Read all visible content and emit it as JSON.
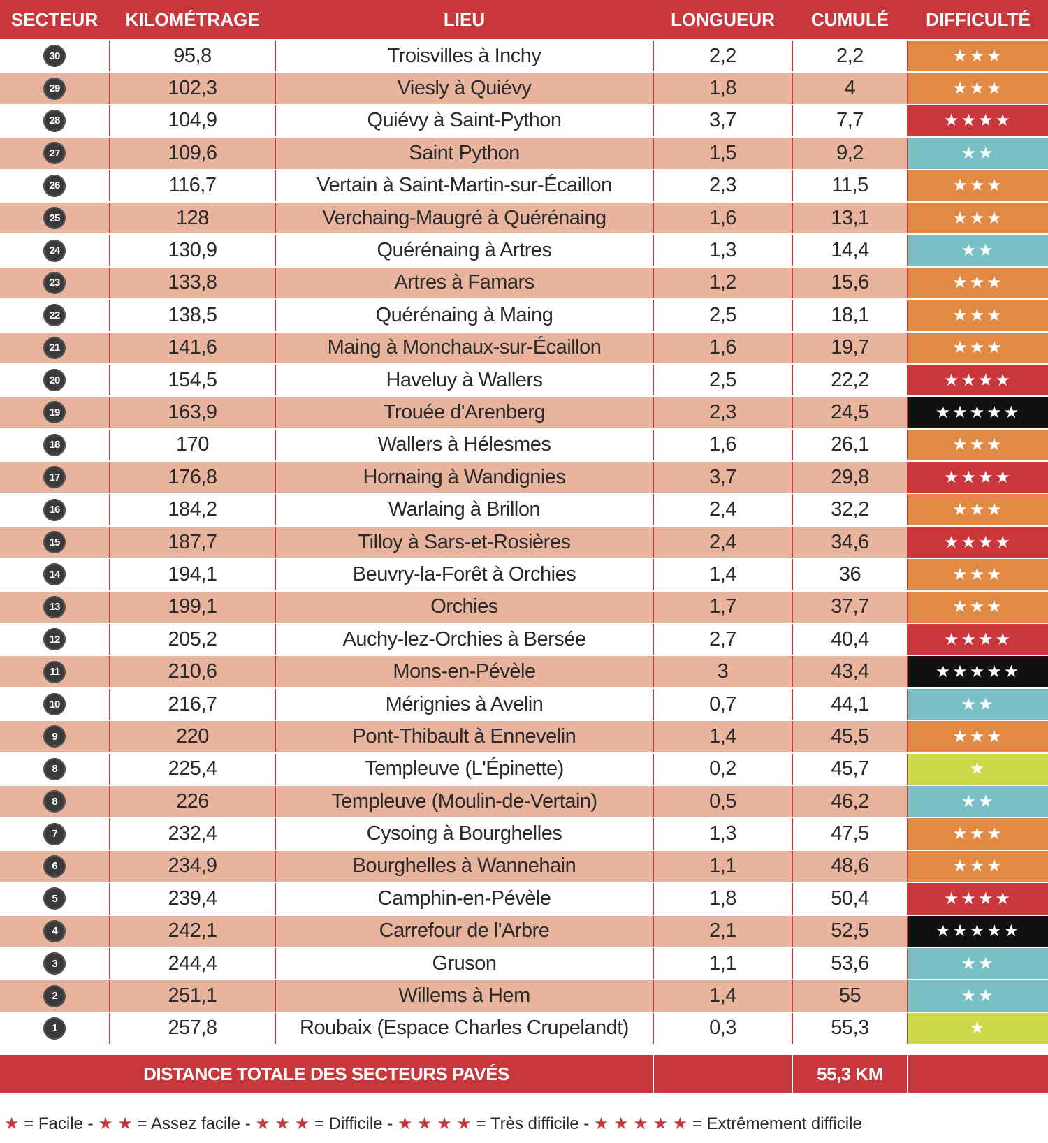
{
  "headers": {
    "sector": "SECTEUR",
    "km": "KILOMÉTRAGE",
    "place": "LIEU",
    "length": "LONGUEUR",
    "cumul": "CUMULÉ",
    "difficulty": "DIFFICULTÉ"
  },
  "difficulty_colors": {
    "1": "#cdd84a",
    "2": "#78bfc6",
    "3": "#e08a45",
    "4": "#c8373b",
    "5": "#111111"
  },
  "rows": [
    {
      "sector": "30",
      "km": "95,8",
      "place": "Troisvilles à Inchy",
      "length": "2,2",
      "cumul": "2,2",
      "stars": 3
    },
    {
      "sector": "29",
      "km": "102,3",
      "place": "Viesly à Quiévy",
      "length": "1,8",
      "cumul": "4",
      "stars": 3
    },
    {
      "sector": "28",
      "km": "104,9",
      "place": "Quiévy à Saint-Python",
      "length": "3,7",
      "cumul": "7,7",
      "stars": 4
    },
    {
      "sector": "27",
      "km": "109,6",
      "place": "Saint Python",
      "length": "1,5",
      "cumul": "9,2",
      "stars": 2
    },
    {
      "sector": "26",
      "km": "116,7",
      "place": "Vertain à Saint-Martin-sur-Écaillon",
      "length": "2,3",
      "cumul": "11,5",
      "stars": 3
    },
    {
      "sector": "25",
      "km": "128",
      "place": "Verchaing-Maugré à Quérénaing",
      "length": "1,6",
      "cumul": "13,1",
      "stars": 3
    },
    {
      "sector": "24",
      "km": "130,9",
      "place": "Quérénaing à Artres",
      "length": "1,3",
      "cumul": "14,4",
      "stars": 2
    },
    {
      "sector": "23",
      "km": "133,8",
      "place": "Artres à Famars",
      "length": "1,2",
      "cumul": "15,6",
      "stars": 3
    },
    {
      "sector": "22",
      "km": "138,5",
      "place": "Quérénaing à Maing",
      "length": "2,5",
      "cumul": "18,1",
      "stars": 3
    },
    {
      "sector": "21",
      "km": "141,6",
      "place": "Maing à Monchaux-sur-Écaillon",
      "length": "1,6",
      "cumul": "19,7",
      "stars": 3
    },
    {
      "sector": "20",
      "km": "154,5",
      "place": "Haveluy à Wallers",
      "length": "2,5",
      "cumul": "22,2",
      "stars": 4
    },
    {
      "sector": "19",
      "km": "163,9",
      "place": "Trouée d'Arenberg",
      "length": "2,3",
      "cumul": "24,5",
      "stars": 5
    },
    {
      "sector": "18",
      "km": "170",
      "place": "Wallers à Hélesmes",
      "length": "1,6",
      "cumul": "26,1",
      "stars": 3
    },
    {
      "sector": "17",
      "km": "176,8",
      "place": "Hornaing à Wandignies",
      "length": "3,7",
      "cumul": "29,8",
      "stars": 4
    },
    {
      "sector": "16",
      "km": "184,2",
      "place": "Warlaing à Brillon",
      "length": "2,4",
      "cumul": "32,2",
      "stars": 3
    },
    {
      "sector": "15",
      "km": "187,7",
      "place": "Tilloy à Sars-et-Rosières",
      "length": "2,4",
      "cumul": "34,6",
      "stars": 4
    },
    {
      "sector": "14",
      "km": "194,1",
      "place": "Beuvry-la-Forêt à Orchies",
      "length": "1,4",
      "cumul": "36",
      "stars": 3
    },
    {
      "sector": "13",
      "km": "199,1",
      "place": "Orchies",
      "length": "1,7",
      "cumul": "37,7",
      "stars": 3
    },
    {
      "sector": "12",
      "km": "205,2",
      "place": "Auchy-lez-Orchies à Bersée",
      "length": "2,7",
      "cumul": "40,4",
      "stars": 4
    },
    {
      "sector": "11",
      "km": "210,6",
      "place": "Mons-en-Pévèle",
      "length": "3",
      "cumul": "43,4",
      "stars": 5
    },
    {
      "sector": "10",
      "km": "216,7",
      "place": "Mérignies à Avelin",
      "length": "0,7",
      "cumul": "44,1",
      "stars": 2
    },
    {
      "sector": "9",
      "km": "220",
      "place": "Pont-Thibault à Ennevelin",
      "length": "1,4",
      "cumul": "45,5",
      "stars": 3
    },
    {
      "sector": "8",
      "km": "225,4",
      "place": "Templeuve (L'Épinette)",
      "length": "0,2",
      "cumul": "45,7",
      "stars": 1
    },
    {
      "sector": "8",
      "km": "226",
      "place": "Templeuve (Moulin-de-Vertain)",
      "length": "0,5",
      "cumul": "46,2",
      "stars": 2
    },
    {
      "sector": "7",
      "km": "232,4",
      "place": "Cysoing à Bourghelles",
      "length": "1,3",
      "cumul": "47,5",
      "stars": 3
    },
    {
      "sector": "6",
      "km": "234,9",
      "place": "Bourghelles à Wannehain",
      "length": "1,1",
      "cumul": "48,6",
      "stars": 3
    },
    {
      "sector": "5",
      "km": "239,4",
      "place": "Camphin-en-Pévèle",
      "length": "1,8",
      "cumul": "50,4",
      "stars": 4
    },
    {
      "sector": "4",
      "km": "242,1",
      "place": "Carrefour de l'Arbre",
      "length": "2,1",
      "cumul": "52,5",
      "stars": 5
    },
    {
      "sector": "3",
      "km": "244,4",
      "place": "Gruson",
      "length": "1,1",
      "cumul": "53,6",
      "stars": 2
    },
    {
      "sector": "2",
      "km": "251,1",
      "place": "Willems à Hem",
      "length": "1,4",
      "cumul": "55",
      "stars": 2
    },
    {
      "sector": "1",
      "km": "257,8",
      "place": "Roubaix (Espace Charles Crupelandt)",
      "length": "0,3",
      "cumul": "55,3",
      "stars": 1
    }
  ],
  "total": {
    "label": "DISTANCE TOTALE DES SECTEURS PAVÉS",
    "value": "55,3 KM"
  },
  "legend": [
    {
      "stars": 1,
      "label": "= Facile -"
    },
    {
      "stars": 2,
      "label": "= Assez facile -"
    },
    {
      "stars": 3,
      "label": "= Difficile -"
    },
    {
      "stars": 4,
      "label": "= Très difficile -"
    },
    {
      "stars": 5,
      "label": "= Extrêmement difficile"
    }
  ]
}
